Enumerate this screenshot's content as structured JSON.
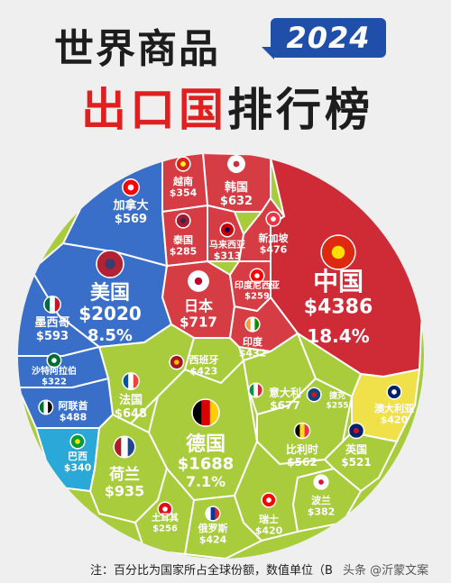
{
  "title_line1": "世界商品",
  "year": "2024",
  "title_line2_red": "出口国",
  "title_line2_dark": "排行榜",
  "footnote": "注：百分比为国家所占全球份额，数值单位（B",
  "watermark": "头条 @沂蒙文案",
  "colors": {
    "china": "#cf2b36",
    "asia_light": "#d63c44",
    "americas": "#3a6fc9",
    "europe": "#a9cc3c",
    "oceania": "#f0e14a",
    "brazil": "#2aa8d8",
    "lines": "#ffffff"
  },
  "chart_data": {
    "type": "voronoi-treemap",
    "title": "世界商品出口国排行榜 2024",
    "unit": "$B",
    "cells": [
      {
        "name": "中国",
        "value": "$4386",
        "share": "18.4%",
        "flag": "cn-flag-icon"
      },
      {
        "name": "美国",
        "value": "$2020",
        "share": "8.5%",
        "flag": "us-flag-icon"
      },
      {
        "name": "德国",
        "value": "$1688",
        "share": "7.1%",
        "flag": "de-flag-icon"
      },
      {
        "name": "荷兰",
        "value": "$935",
        "flag": "nl-flag-icon"
      },
      {
        "name": "日本",
        "value": "$717",
        "flag": "jp-flag-icon"
      },
      {
        "name": "意大利",
        "value": "$677",
        "flag": "it-flag-icon"
      },
      {
        "name": "法国",
        "value": "$648",
        "flag": "fr-flag-icon"
      },
      {
        "name": "韩国",
        "value": "$632",
        "flag": "kr-flag-icon"
      },
      {
        "name": "墨西哥",
        "value": "$593",
        "flag": "mx-flag-icon"
      },
      {
        "name": "加拿大",
        "value": "$569",
        "flag": "ca-flag-icon"
      },
      {
        "name": "比利时",
        "value": "$562",
        "flag": "be-flag-icon"
      },
      {
        "name": "英国",
        "value": "$521",
        "flag": "gb-flag-icon"
      },
      {
        "name": "阿联酋",
        "value": "$488",
        "flag": "ae-flag-icon"
      },
      {
        "name": "新加坡",
        "value": "$476",
        "flag": "sg-flag-icon"
      },
      {
        "name": "印度",
        "value": "$432",
        "flag": "in-flag-icon"
      },
      {
        "name": "西班牙",
        "value": "$423",
        "flag": "es-flag-icon"
      },
      {
        "name": "俄罗斯",
        "value": "$424",
        "flag": "ru-flag-icon"
      },
      {
        "name": "瑞士",
        "value": "$420",
        "flag": "ch-flag-icon"
      },
      {
        "name": "澳大利亚",
        "value": "$420",
        "flag": "au-flag-icon"
      },
      {
        "name": "波兰",
        "value": "$382",
        "flag": "pl-flag-icon"
      },
      {
        "name": "越南",
        "value": "$354",
        "flag": "vn-flag-icon"
      },
      {
        "name": "巴西",
        "value": "$340",
        "flag": "br-flag-icon"
      },
      {
        "name": "沙特阿拉伯",
        "value": "$322",
        "flag": "sa-flag-icon"
      },
      {
        "name": "马来西亚",
        "value": "$313",
        "flag": "my-flag-icon"
      },
      {
        "name": "泰国",
        "value": "$285",
        "flag": "th-flag-icon"
      },
      {
        "name": "印度尼西亚",
        "value": "$259",
        "flag": "id-flag-icon"
      },
      {
        "name": "土耳其",
        "value": "$256",
        "flag": "tr-flag-icon"
      },
      {
        "name": "捷克",
        "value": "$255",
        "flag": "cz-flag-icon"
      }
    ]
  }
}
